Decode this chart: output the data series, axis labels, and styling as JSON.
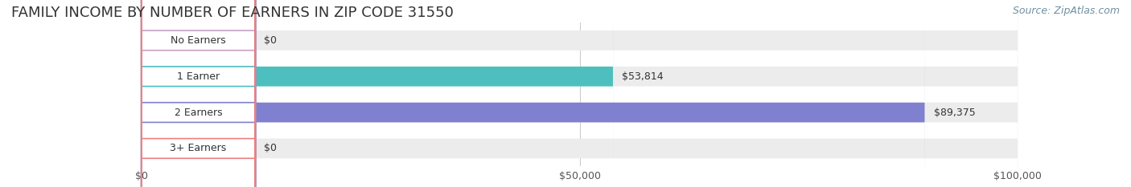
{
  "title": "FAMILY INCOME BY NUMBER OF EARNERS IN ZIP CODE 31550",
  "source": "Source: ZipAtlas.com",
  "categories": [
    "No Earners",
    "1 Earner",
    "2 Earners",
    "3+ Earners"
  ],
  "values": [
    0,
    53814,
    89375,
    0
  ],
  "bar_colors": [
    "#c9a0c8",
    "#4dbfbf",
    "#8080d0",
    "#f08080"
  ],
  "label_colors": [
    "#555555",
    "#555555",
    "#ffffff",
    "#555555"
  ],
  "bar_bg_color": "#ececec",
  "label_bg_color": "#ffffff",
  "label_border_colors": [
    "#c9a0c8",
    "#4dbfbf",
    "#8080d0",
    "#f08080"
  ],
  "xlim": [
    0,
    100000
  ],
  "xticks": [
    0,
    50000,
    100000
  ],
  "xtick_labels": [
    "$0",
    "$50,000",
    "$100,000"
  ],
  "bar_height": 0.55,
  "value_labels": [
    "$0",
    "$53,814",
    "$89,375",
    "$0"
  ],
  "figsize": [
    14.06,
    2.33
  ],
  "dpi": 100,
  "background_color": "#ffffff",
  "title_fontsize": 13,
  "source_fontsize": 9,
  "bar_label_fontsize": 9,
  "tick_fontsize": 9
}
